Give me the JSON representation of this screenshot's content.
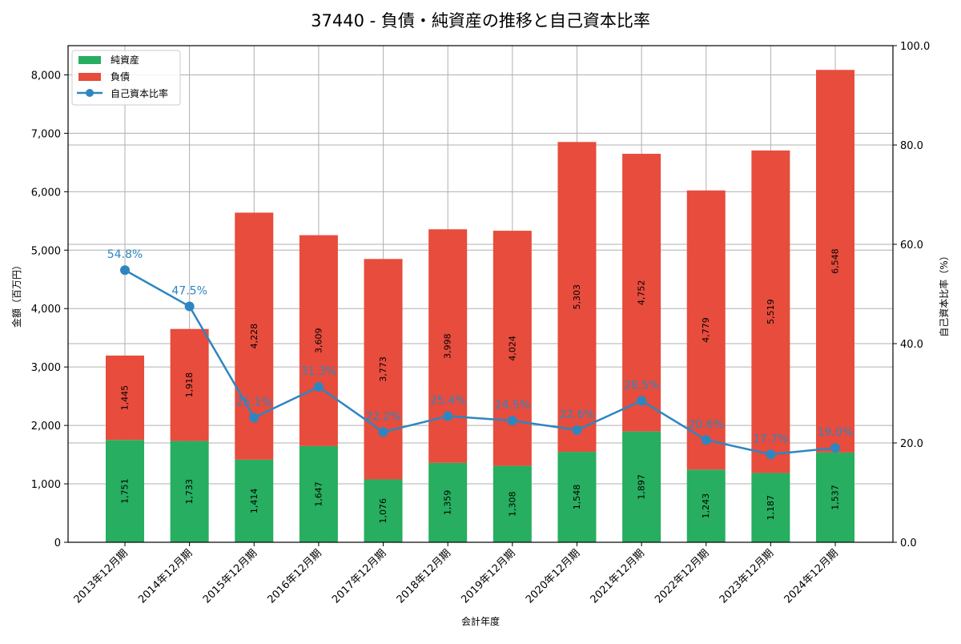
{
  "chart_data": {
    "type": "bar",
    "subtype": "stacked-bar-with-line",
    "title": "37440 - 負債・純資産の推移と自己資本比率",
    "xlabel": "会計年度",
    "ylabel": "金額（百万円）",
    "y2label": "自己資本比率（%）",
    "ylim": [
      0,
      8500
    ],
    "y2lim": [
      0,
      100
    ],
    "yticks": [
      0,
      1000,
      2000,
      3000,
      4000,
      5000,
      6000,
      7000,
      8000
    ],
    "ytick_labels": [
      "0",
      "1,000",
      "2,000",
      "3,000",
      "4,000",
      "5,000",
      "6,000",
      "7,000",
      "8,000"
    ],
    "y2ticks": [
      0,
      20,
      40,
      60,
      80,
      100
    ],
    "y2tick_labels": [
      "0.0",
      "20.0",
      "40.0",
      "60.0",
      "80.0",
      "100.0"
    ],
    "grid": true,
    "legend_position": "upper left",
    "categories": [
      "2013年12月期",
      "2014年12月期",
      "2015年12月期",
      "2016年12月期",
      "2017年12月期",
      "2018年12月期",
      "2019年12月期",
      "2020年12月期",
      "2021年12月期",
      "2022年12月期",
      "2023年12月期",
      "2024年12月期"
    ],
    "series": [
      {
        "name": "純資産",
        "type": "bar",
        "axis": "left",
        "color": "#27ae60",
        "values": [
          1751,
          1733,
          1414,
          1647,
          1076,
          1359,
          1308,
          1548,
          1897,
          1243,
          1187,
          1537
        ],
        "labels": [
          "1,751",
          "1,733",
          "1,414",
          "1,647",
          "1,076",
          "1,359",
          "1,308",
          "1,548",
          "1,897",
          "1,243",
          "1,187",
          "1,537"
        ]
      },
      {
        "name": "負債",
        "type": "bar",
        "axis": "left",
        "color": "#e74c3c",
        "values": [
          1445,
          1918,
          4228,
          3609,
          3773,
          3998,
          4024,
          5303,
          4752,
          4779,
          5519,
          6548
        ],
        "labels": [
          "1,445",
          "1,918",
          "4,228",
          "3,609",
          "3,773",
          "3,998",
          "4,024",
          "5,303",
          "4,752",
          "4,779",
          "5,519",
          "6,548"
        ]
      },
      {
        "name": "自己資本比率",
        "type": "line",
        "axis": "right",
        "color": "#2e86c1",
        "values": [
          54.8,
          47.5,
          25.1,
          31.3,
          22.2,
          25.4,
          24.5,
          22.6,
          28.5,
          20.6,
          17.7,
          19.0
        ],
        "labels": [
          "54.8%",
          "47.5%",
          "25.1%",
          "31.3%",
          "22.2%",
          "25.4%",
          "24.5%",
          "22.6%",
          "28.5%",
          "20.6%",
          "17.7%",
          "19.0%"
        ]
      }
    ]
  },
  "legend": {
    "items": [
      {
        "label": "純資産",
        "kind": "patch",
        "color": "#27ae60"
      },
      {
        "label": "負債",
        "kind": "patch",
        "color": "#e74c3c"
      },
      {
        "label": "自己資本比率",
        "kind": "line-marker",
        "color": "#2e86c1"
      }
    ]
  },
  "colors": {
    "grid": "#b0b0b0",
    "axis": "#000000",
    "bar_label_text": "#000000"
  }
}
